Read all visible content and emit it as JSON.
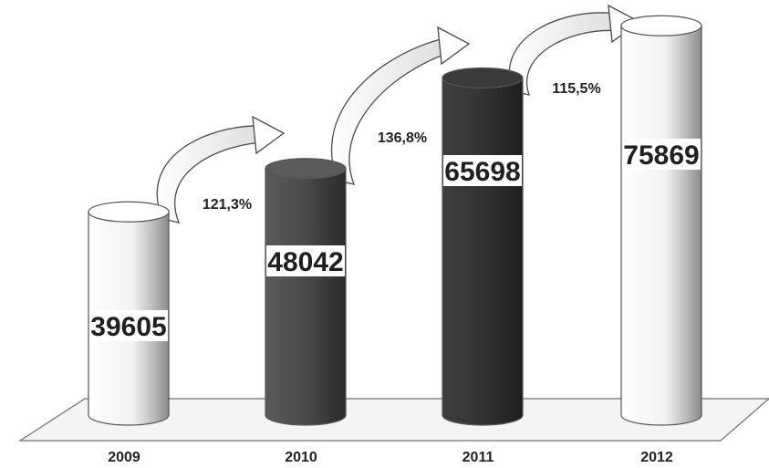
{
  "chart_data": {
    "type": "bar",
    "categories": [
      "2009",
      "2010",
      "2011",
      "2012"
    ],
    "values": [
      39605,
      48042,
      65698,
      75869
    ],
    "value_labels": [
      "39605",
      "48042",
      "65698",
      "75869"
    ],
    "growth_labels": [
      "121,3%",
      "136,8%",
      "115,5%"
    ],
    "title": "",
    "xlabel": "",
    "ylabel": "",
    "ylim": [
      0,
      80000
    ],
    "grid": false,
    "style": "3d-cylinder",
    "bar_colors": [
      "#ffffff",
      "#4a4a4a",
      "#333333",
      "#ffffff"
    ],
    "shade_colors": [
      "#bdbdbd",
      "#2a2a2a",
      "#1e1e1e",
      "#bdbdbd"
    ],
    "top_colors": [
      "#ffffff",
      "#5a5a5a",
      "#3a3a3a",
      "#ffffff"
    ]
  }
}
